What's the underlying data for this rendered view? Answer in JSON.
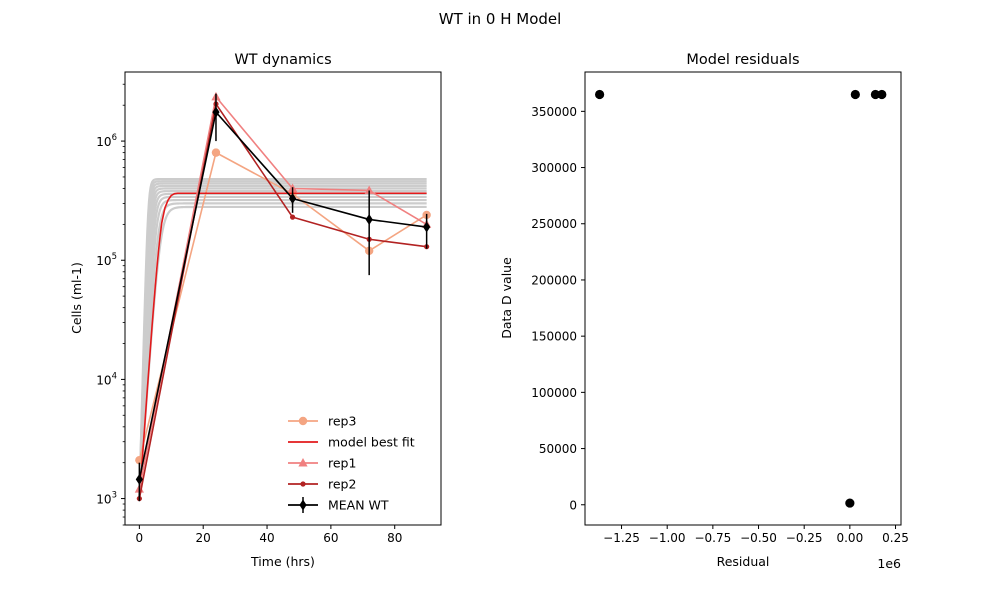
{
  "figure": {
    "suptitle": "WT in 0 H Model"
  },
  "chart_data": [
    {
      "type": "line",
      "title": "WT dynamics",
      "xlabel": "Time (hrs)",
      "ylabel": "Cells (ml-1)",
      "yscale": "log",
      "xlim": [
        -4.5,
        94.5
      ],
      "ylim": [
        600,
        3800000
      ],
      "xticks": [
        0,
        20,
        40,
        60,
        80
      ],
      "xtick_labels": [
        "0",
        "20",
        "40",
        "60",
        "80"
      ],
      "ytick_labels": [
        {
          "value": 1000,
          "base": "10",
          "exp": "3"
        },
        {
          "value": 10000,
          "base": "10",
          "exp": "4"
        },
        {
          "value": 100000,
          "base": "10",
          "exp": "5"
        },
        {
          "value": 1000000,
          "base": "10",
          "exp": "6"
        }
      ],
      "legend_position": "lower-right",
      "ensemble": {
        "color": "#cccccc",
        "plateaus": [
          280000,
          300000,
          320000,
          340000,
          360000,
          380000,
          400000,
          420000,
          440000,
          460000,
          480000
        ],
        "x0": 0,
        "x1": 90,
        "y_start": 1000
      },
      "series": [
        {
          "name": "rep3",
          "color": "#f4a582",
          "marker": "circle",
          "x": [
            0,
            24,
            48,
            72,
            90
          ],
          "y": [
            2100,
            800000,
            360000,
            120000,
            240000
          ]
        },
        {
          "name": " model best fit",
          "color": "#e31a1c",
          "marker": "none",
          "x": [
            0,
            0.5,
            1,
            1.5,
            2,
            2.5,
            3,
            3.5,
            4,
            4.5,
            5,
            5.5,
            6,
            6.5,
            7,
            8,
            9,
            10,
            11,
            12,
            14,
            20,
            40,
            60,
            90
          ],
          "y": [
            1000,
            1500,
            2300,
            3500,
            5400,
            8300,
            12500,
            19000,
            28500,
            42000,
            61000,
            87000,
            120000,
            160000,
            205000,
            275000,
            320000,
            350000,
            362000,
            365000,
            365000,
            365000,
            365000,
            365000,
            365000
          ]
        },
        {
          "name": "rep1",
          "color": "#f08080",
          "marker": "triangle",
          "x": [
            0,
            24,
            48,
            72,
            90
          ],
          "y": [
            1200,
            2350000,
            400000,
            385000,
            200000
          ]
        },
        {
          "name": "rep2",
          "color": "#b22222",
          "marker": "small-circle",
          "x": [
            0,
            24,
            48,
            72,
            90
          ],
          "y": [
            1000,
            2050000,
            230000,
            150000,
            130000
          ]
        },
        {
          "name": "MEAN WT",
          "color": "#000000",
          "marker": "diamond",
          "x": [
            0,
            24,
            48,
            72,
            90
          ],
          "y": [
            1450,
            1750000,
            330000,
            220000,
            190000
          ],
          "yerr_low": [
            950,
            1000000,
            250000,
            75000,
            125000
          ],
          "yerr_high": [
            2000,
            2500000,
            410000,
            385000,
            245000
          ]
        }
      ]
    },
    {
      "type": "scatter",
      "title": "Model residuals",
      "xlabel": "Residual",
      "ylabel": "Data D value",
      "offset_text": "1e6",
      "xlim": [
        -1.45,
        0.28
      ],
      "ylim": [
        -18000,
        385000
      ],
      "xticks": [
        -1.25,
        -1.0,
        -0.75,
        -0.5,
        -0.25,
        0.0,
        0.25
      ],
      "xtick_labels": [
        "−1.25",
        "−1.00",
        "−0.75",
        "−0.50",
        "−0.25",
        "0.00",
        "0.25"
      ],
      "yticks": [
        0,
        50000,
        100000,
        150000,
        200000,
        250000,
        300000,
        350000
      ],
      "ytick_labels": [
        "0",
        "50000",
        "100000",
        "150000",
        "200000",
        "250000",
        "300000",
        "350000"
      ],
      "color": "#000000",
      "x": [
        -1.37,
        0.03,
        0.14,
        0.175,
        0.0
      ],
      "y": [
        365000,
        365000,
        365000,
        365000,
        1500
      ]
    }
  ]
}
